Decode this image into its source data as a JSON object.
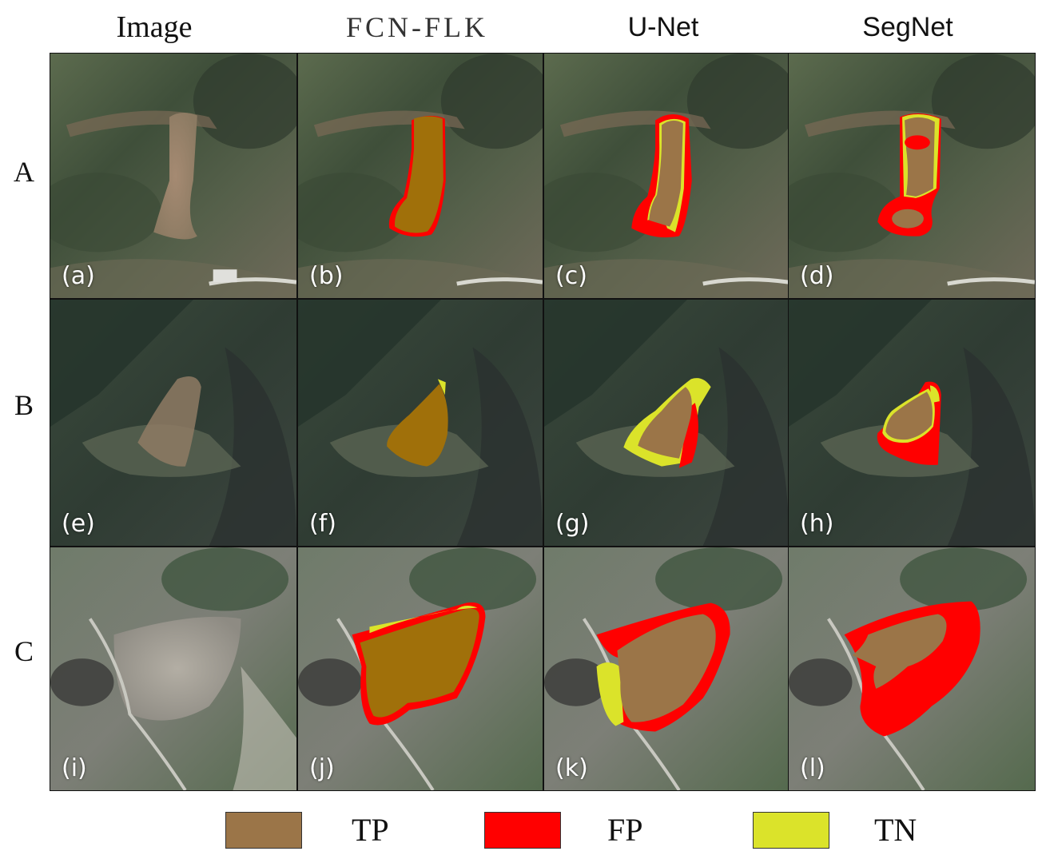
{
  "columns": [
    "Image",
    "FCN-FLK",
    "U-Net",
    "SegNet"
  ],
  "rows": [
    "A",
    "B",
    "C"
  ],
  "panel_tags": [
    "(a)",
    "(b)",
    "(c)",
    "(d)",
    "(e)",
    "(f)",
    "(g)",
    "(h)",
    "(i)",
    "(j)",
    "(k)",
    "(l)"
  ],
  "legend": [
    {
      "label": "TP",
      "color": "#9b7548"
    },
    {
      "label": "FP",
      "color": "#ff0000"
    },
    {
      "label": "TN",
      "color": "#dbe32a"
    }
  ],
  "colors": {
    "tp": "#9b7548",
    "tp_dark": "#a0700a",
    "fp": "#ff0000",
    "tn": "#dbe32a"
  }
}
